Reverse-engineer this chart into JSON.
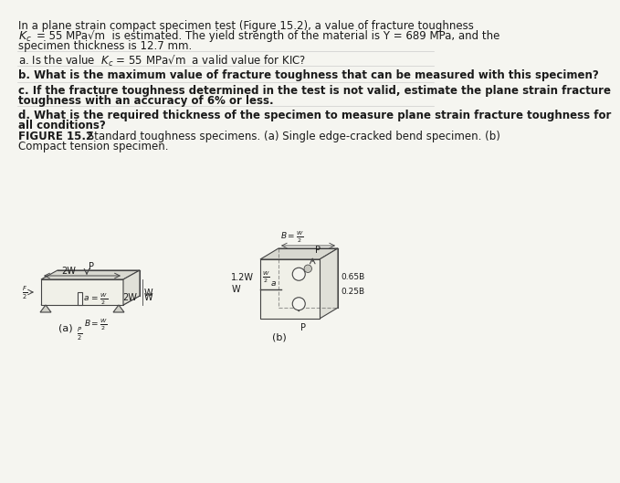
{
  "title_text": "In a plane strain compact specimen test (Figure 15.2), a value of fracture toughness",
  "line2": "Kₙ = 55 MPa√m  is estimated. The yield strength of the material is Y = 689 MPa, and the",
  "line3": "specimen thickness is 12.7 mm.",
  "qa": "a. Is the value  Kₙ = 55 MPa√m  a valid value for KIC?",
  "qb": "b. What is the maximum value of fracture toughness that can be measured with this specimen?",
  "qc": "c. If the fracture toughness determined in the test is not valid, estimate the plane strain fracture\ntoughness with an accuracy of 6% or less.",
  "qd": "d. What is the required thickness of the specimen to measure plane strain fracture toughness for\nall conditions?",
  "fig_caption": "FIGURE 15.2 Standard toughness specimens. (a) Single edge-cracked bend specimen. (b)\nCompact tension specimen.",
  "bg_color": "#f5f5f0",
  "text_color": "#1a1a1a",
  "line_color": "#555555"
}
